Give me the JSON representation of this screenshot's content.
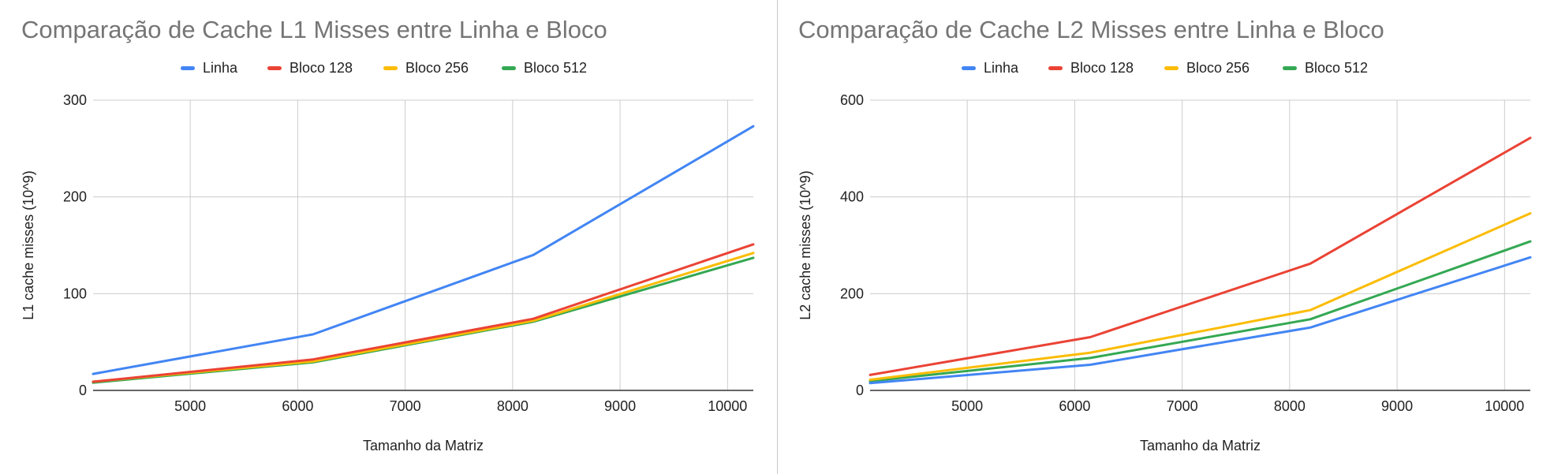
{
  "chart_data": [
    {
      "type": "line",
      "title": "Comparação de Cache L1 Misses entre Linha e Bloco",
      "xlabel": "Tamanho da Matriz",
      "ylabel": "L1 cache misses (10^9)",
      "xlim": [
        4096,
        10240
      ],
      "ylim": [
        0,
        300
      ],
      "xticks": [
        5000,
        6000,
        7000,
        8000,
        9000,
        10000
      ],
      "yticks": [
        0,
        100,
        200,
        300
      ],
      "grid": true,
      "legend": "top-center",
      "x": [
        4096,
        6144,
        8192,
        10240
      ],
      "series": [
        {
          "name": "Linha",
          "color": "#4285f4",
          "values": [
            17,
            58,
            140,
            273
          ]
        },
        {
          "name": "Bloco 128",
          "color": "#ea4335",
          "values": [
            9,
            32,
            74,
            151
          ]
        },
        {
          "name": "Bloco 256",
          "color": "#fbbc04",
          "values": [
            9,
            30,
            72,
            142
          ]
        },
        {
          "name": "Bloco 512",
          "color": "#34a853",
          "values": [
            8,
            29,
            71,
            137
          ]
        }
      ]
    },
    {
      "type": "line",
      "title": "Comparação de Cache L2 Misses entre Linha e Bloco",
      "xlabel": "Tamanho da Matriz",
      "ylabel": "L2 cache misses (10^9)",
      "xlim": [
        4096,
        10240
      ],
      "ylim": [
        0,
        600
      ],
      "xticks": [
        5000,
        6000,
        7000,
        8000,
        9000,
        10000
      ],
      "yticks": [
        0,
        200,
        400,
        600
      ],
      "grid": true,
      "legend": "top-center",
      "x": [
        4096,
        6144,
        8192,
        10240
      ],
      "series": [
        {
          "name": "Linha",
          "color": "#4285f4",
          "values": [
            15,
            53,
            130,
            275
          ]
        },
        {
          "name": "Bloco 128",
          "color": "#ea4335",
          "values": [
            32,
            110,
            262,
            522
          ]
        },
        {
          "name": "Bloco 256",
          "color": "#fbbc04",
          "values": [
            22,
            78,
            166,
            366
          ]
        },
        {
          "name": "Bloco 512",
          "color": "#34a853",
          "values": [
            19,
            67,
            147,
            308
          ]
        }
      ]
    }
  ]
}
